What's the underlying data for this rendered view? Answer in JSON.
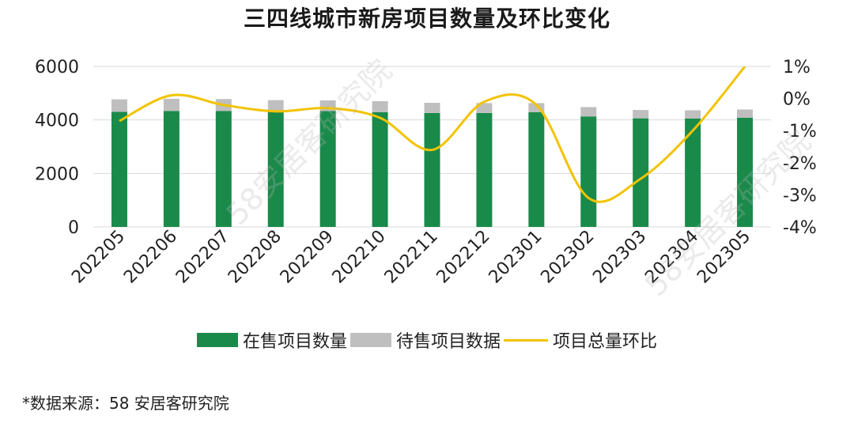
{
  "chart_data": {
    "type": "bar",
    "title": "三四线城市新房项目数量及环比变化",
    "categories": [
      "202205",
      "202206",
      "202207",
      "202208",
      "202209",
      "202210",
      "202211",
      "202212",
      "202301",
      "202302",
      "202303",
      "202304",
      "202305"
    ],
    "series": [
      {
        "name": "在售项目数量",
        "kind": "bar-stacked",
        "axis": "left",
        "color": "#1a8a4a",
        "values": [
          4300,
          4330,
          4330,
          4310,
          4330,
          4290,
          4260,
          4260,
          4290,
          4130,
          4060,
          4050,
          4080
        ]
      },
      {
        "name": "待售项目数据",
        "kind": "bar-stacked",
        "axis": "left",
        "color": "#bfbfbf",
        "values": [
          470,
          460,
          450,
          430,
          400,
          410,
          380,
          370,
          340,
          350,
          310,
          310,
          310
        ]
      },
      {
        "name": "项目总量环比",
        "kind": "line",
        "axis": "right",
        "color": "#f2c300",
        "values": [
          -0.7,
          0.1,
          -0.2,
          -0.4,
          -0.3,
          -0.6,
          -1.6,
          -0.1,
          -0.2,
          -3.1,
          -2.5,
          -1.0,
          1.0
        ]
      }
    ],
    "y_left": {
      "ylim": [
        0,
        6000
      ],
      "ticks": [
        0,
        2000,
        4000,
        6000
      ]
    },
    "y_right": {
      "ylim": [
        -4,
        1
      ],
      "ticks": [
        "1%",
        "0%",
        "-1%",
        "-2%",
        "-3%",
        "-4%"
      ],
      "tick_values": [
        1,
        0,
        -1,
        -2,
        -3,
        -4
      ]
    },
    "grid": true,
    "legend_position": "bottom"
  },
  "source": "*数据来源：58 安居客研究院",
  "watermark": "58安居客研究院"
}
